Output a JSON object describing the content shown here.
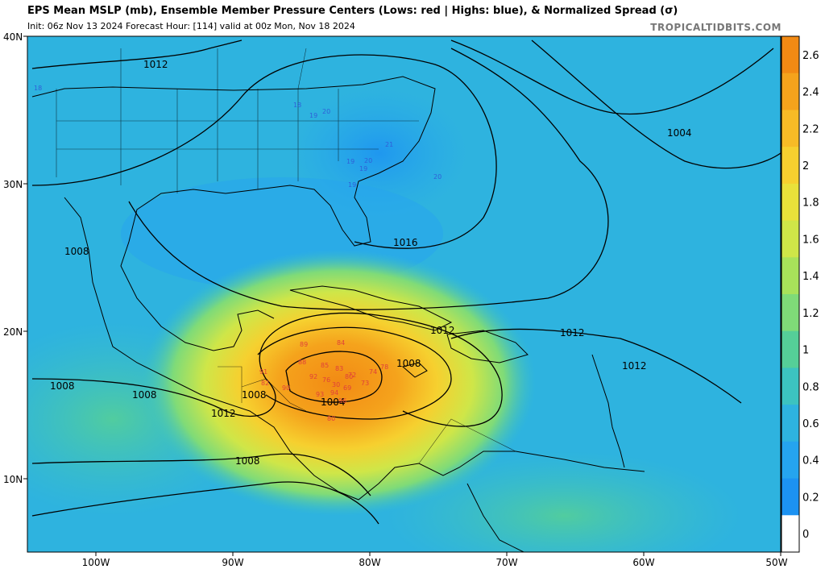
{
  "header": {
    "title": "EPS Mean MSLP (mb), Ensemble Member Pressure Centers (Lows: red | Highs: blue), & Normalized Spread (σ)",
    "subtitle": "Init: 06z Nov 13 2024   Forecast Hour: [114]   valid at 00z Mon, Nov 18 2024",
    "brand": "TROPICALTIDBITS.COM"
  },
  "map": {
    "lon_range": [
      -105,
      -50
    ],
    "lat_range": [
      5,
      40
    ],
    "lat_ticks": [
      "40N",
      "30N",
      "20N",
      "10N"
    ],
    "lon_ticks": [
      "100W",
      "90W",
      "80W",
      "70W",
      "60W",
      "50W"
    ],
    "isobar_labels": [
      "1012",
      "1004",
      "1016",
      "1008",
      "1012",
      "1012",
      "1012",
      "1008",
      "1008",
      "1008",
      "1012",
      "1004",
      "1008",
      "1008"
    ],
    "low_member_values": [
      "88",
      "85",
      "83",
      "80",
      "72",
      "74",
      "78",
      "73",
      "69",
      "30",
      "92",
      "76",
      "93",
      "94",
      "96",
      "90",
      "91",
      "82",
      "80",
      "89",
      "84"
    ],
    "high_member_values": [
      "18",
      "19",
      "20",
      "21",
      "20",
      "19",
      "19",
      "18",
      "19",
      "20"
    ]
  },
  "colorbar": {
    "labels": [
      "2.6",
      "2.4",
      "2.2",
      "2",
      "1.8",
      "1.6",
      "1.4",
      "1.2",
      "1",
      "0.8",
      "0.6",
      "0.4",
      "0.2",
      "0"
    ],
    "colors": [
      "#f28a14",
      "#f5a31c",
      "#f7bb26",
      "#f6d02f",
      "#e9e13a",
      "#cfe648",
      "#a8e25a",
      "#7fdb78",
      "#55cf98",
      "#3cc3c0",
      "#2eb3df",
      "#25a4ef",
      "#1c92f2",
      "#ffffff"
    ]
  }
}
